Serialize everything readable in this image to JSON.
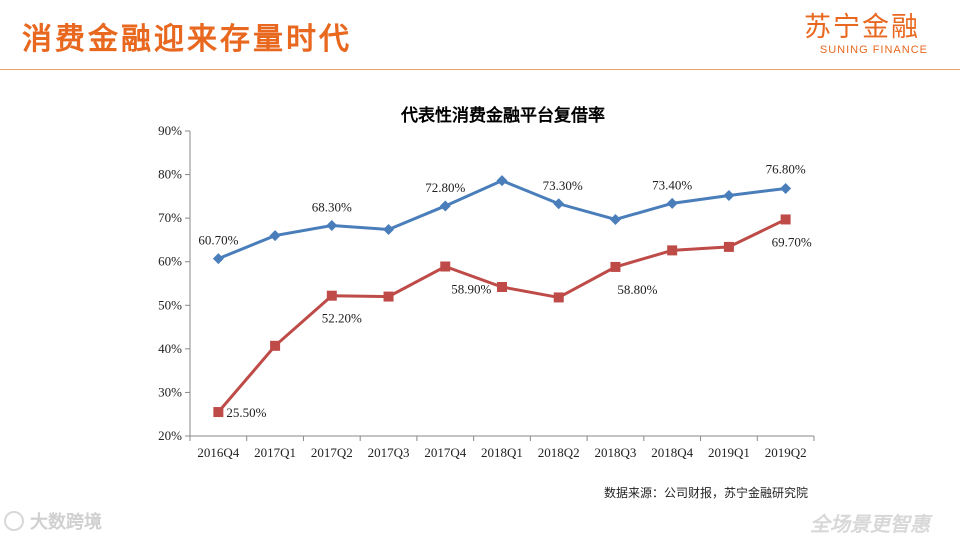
{
  "header": {
    "title": "消费金融迎来存量时代",
    "logo_cn": "苏宁金融",
    "logo_en": "SUNING FINANCE",
    "accent_color": "#e8681f"
  },
  "chart_data": {
    "type": "line",
    "title": "代表性消费金融平台复借率",
    "categories": [
      "2016Q4",
      "2017Q1",
      "2017Q2",
      "2017Q3",
      "2017Q4",
      "2018Q1",
      "2018Q2",
      "2018Q3",
      "2018Q4",
      "2019Q1",
      "2019Q2"
    ],
    "ylim": [
      20,
      90
    ],
    "yticks": [
      "20%",
      "30%",
      "40%",
      "50%",
      "60%",
      "70%",
      "80%",
      "90%"
    ],
    "series": [
      {
        "name": "series-blue",
        "color": "#4a7ebb",
        "marker": "diamond",
        "values": [
          60.7,
          66.0,
          68.3,
          67.4,
          72.8,
          78.6,
          73.3,
          69.7,
          73.4,
          75.2,
          76.8
        ],
        "labels": [
          "60.70%",
          "",
          "68.30%",
          "",
          "72.80%",
          "",
          "73.30%",
          "",
          "73.40%",
          "",
          "76.80%"
        ]
      },
      {
        "name": "series-red",
        "color": "#be4b48",
        "marker": "square",
        "values": [
          25.5,
          40.7,
          52.2,
          52.0,
          58.9,
          54.2,
          51.8,
          58.8,
          62.6,
          63.4,
          69.7
        ],
        "labels": [
          "25.50%",
          "",
          "52.20%",
          "",
          "58.90%",
          "",
          "",
          "58.80%",
          "",
          "",
          "69.70%"
        ]
      }
    ]
  },
  "footer": {
    "source": "数据来源：公司财报，苏宁金融研究院",
    "watermark_left": "大数跨境",
    "watermark_right": "全场景更智惠"
  }
}
